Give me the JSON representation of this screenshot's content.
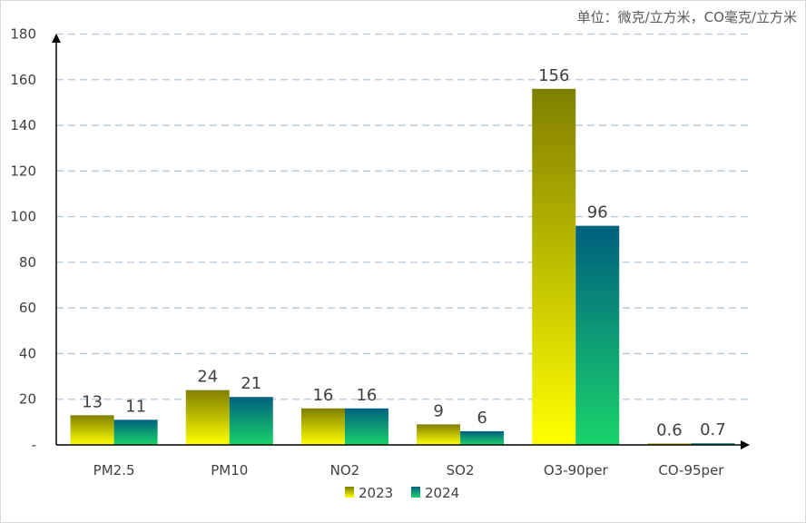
{
  "chart_data": {
    "type": "bar",
    "title": "",
    "unit_note": "单位：微克/立方米，CO毫克/立方米",
    "categories": [
      "PM2.5",
      "PM10",
      "NO2",
      "SO2",
      "O3-90per",
      "CO-95per"
    ],
    "series": [
      {
        "name": "2023",
        "values": [
          13,
          24,
          16,
          9,
          156,
          0.6
        ],
        "labels": [
          "13",
          "24",
          "16",
          "9",
          "156",
          "0.6"
        ],
        "color_top": "#7f7f00",
        "color_bottom": "#ffff00"
      },
      {
        "name": "2024",
        "values": [
          11,
          21,
          16,
          6,
          96,
          0.7
        ],
        "labels": [
          "11",
          "21",
          "16",
          "6",
          "96",
          "0.7"
        ],
        "color_top": "#00607f",
        "color_bottom": "#19d36a"
      }
    ],
    "yticks": [
      "-",
      "20",
      "40",
      "60",
      "80",
      "100",
      "120",
      "140",
      "160",
      "180"
    ],
    "ylim": [
      0,
      180
    ],
    "xlabel": "",
    "ylabel": "",
    "grid": true,
    "legend": "bottom"
  }
}
